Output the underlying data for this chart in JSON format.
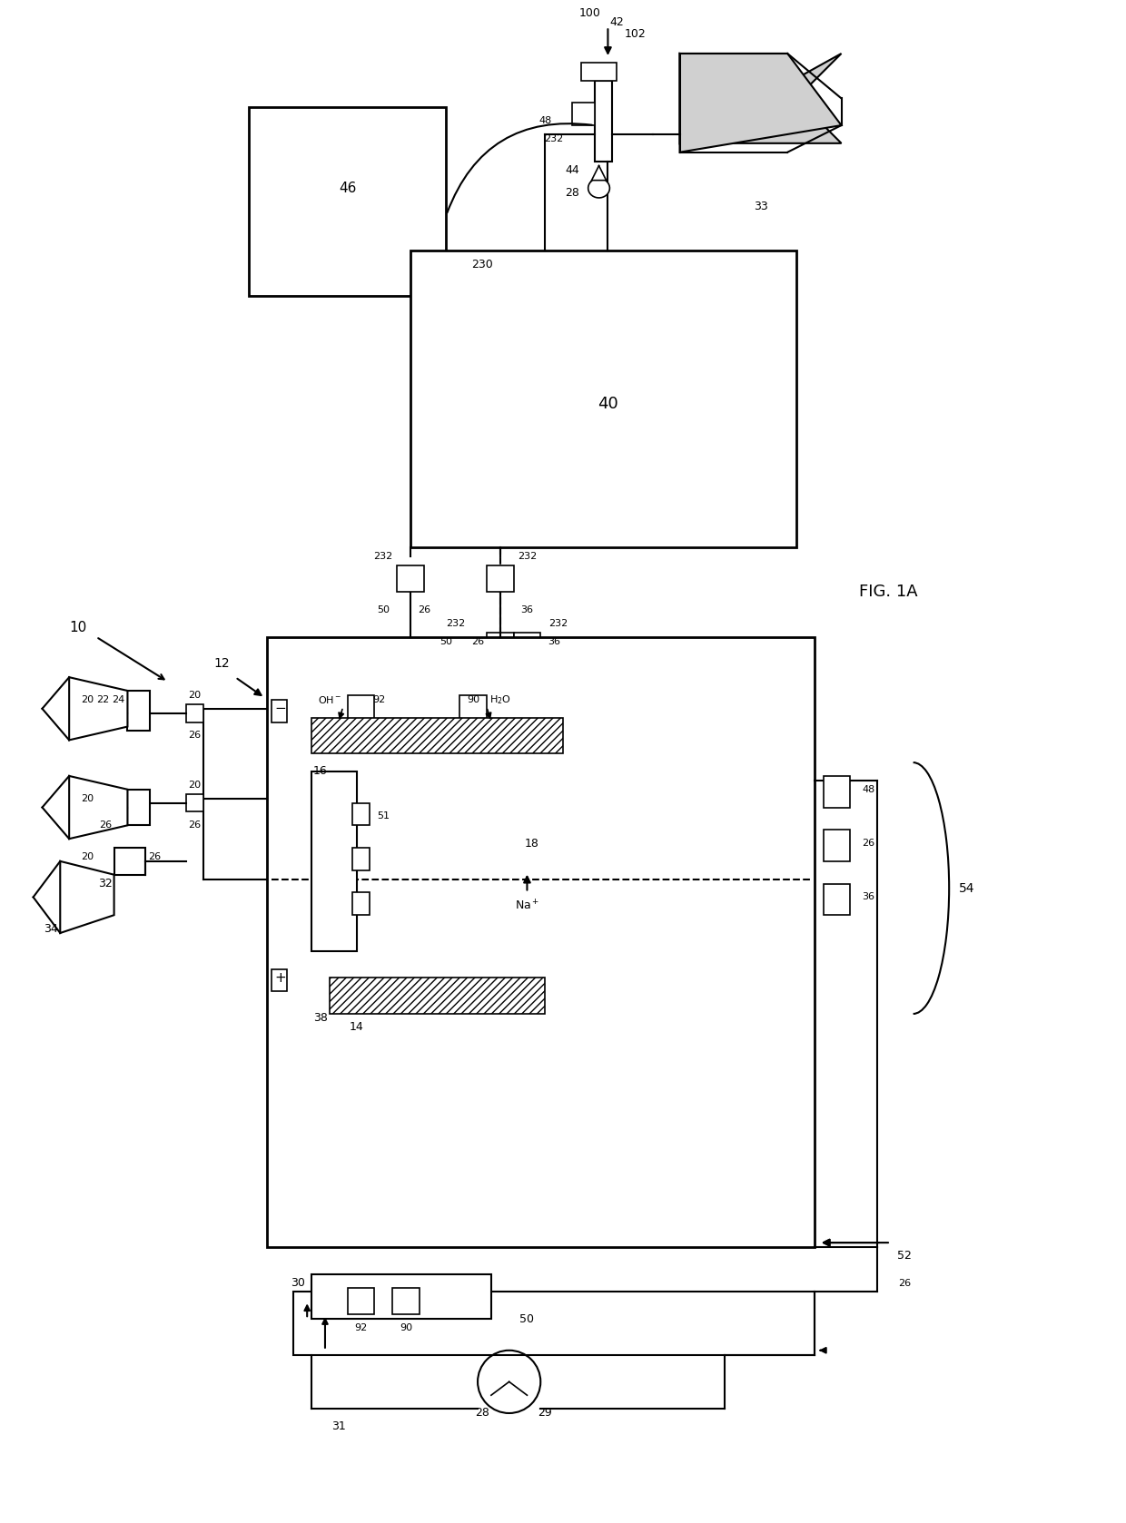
{
  "bg": "#ffffff",
  "lc": "#000000",
  "fig_label": "FIG. 1A",
  "gray": "#d0d0d0"
}
